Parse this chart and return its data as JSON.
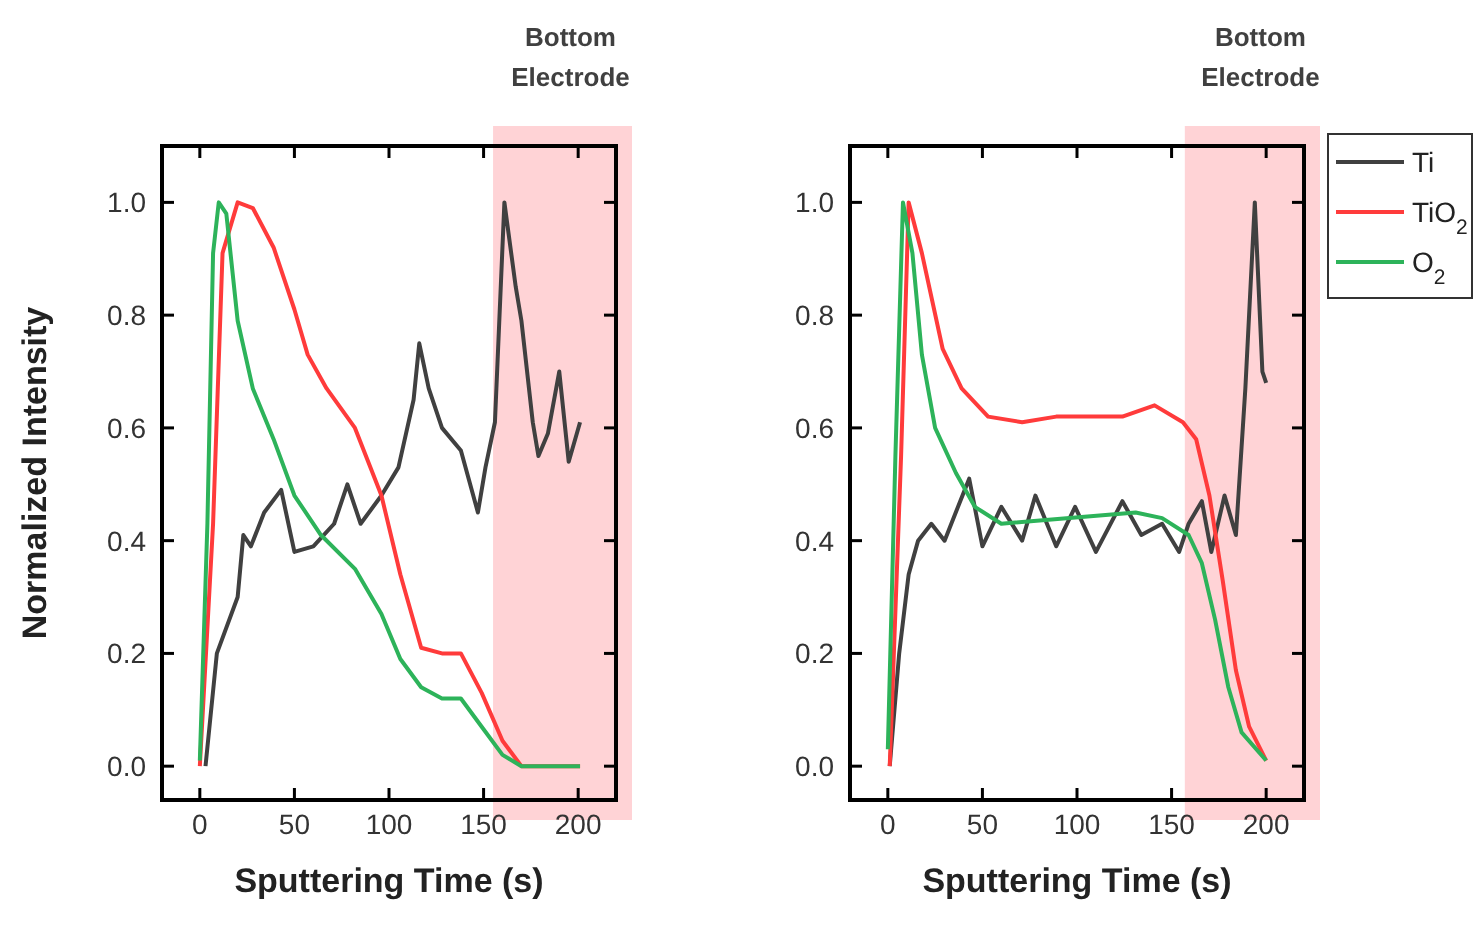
{
  "chart_data": [
    {
      "type": "line",
      "xlabel": "Sputtering Time (s)",
      "ylabel": "Normalized Intensity",
      "xlim": [
        -20,
        220
      ],
      "ylim": [
        -0.06,
        1.1
      ],
      "xticks": [
        0,
        50,
        100,
        150,
        200
      ],
      "yticks": [
        {
          "value": 0,
          "label": "0.0"
        },
        {
          "value": 0.2,
          "label": "0.2"
        },
        {
          "value": 0.4,
          "label": "0.4"
        },
        {
          "value": 0.6,
          "label": "0.6"
        },
        {
          "value": 0.8,
          "label": "0.8"
        },
        {
          "value": 1,
          "label": "1.0"
        }
      ],
      "grid": false,
      "legend": false,
      "bands": [
        {
          "axis": "x",
          "from": 155,
          "to": 220,
          "label": "Bottom Electrode",
          "color": "#ff9da3"
        }
      ],
      "series": [
        {
          "color": "#404040",
          "x": [
            3,
            9,
            20,
            23,
            27,
            34,
            43,
            50,
            60,
            71,
            78,
            85,
            96,
            105,
            113,
            116,
            121,
            128,
            138,
            147,
            151,
            156,
            161,
            167,
            170,
            176,
            179,
            184,
            190,
            195,
            201
          ],
          "values": [
            0,
            0.2,
            0.3,
            0.41,
            0.39,
            0.45,
            0.49,
            0.38,
            0.39,
            0.43,
            0.5,
            0.43,
            0.48,
            0.53,
            0.65,
            0.75,
            0.67,
            0.6,
            0.56,
            0.45,
            0.53,
            0.61,
            1.0,
            0.85,
            0.79,
            0.61,
            0.55,
            0.59,
            0.7,
            0.54,
            0.61
          ]
        },
        {
          "color": "#ff3b3b",
          "x": [
            0,
            7,
            12,
            20,
            28,
            39,
            50,
            57,
            67,
            82,
            96,
            106,
            117,
            128,
            138,
            149,
            160,
            170,
            201
          ],
          "values": [
            0,
            0.43,
            0.91,
            1.0,
            0.99,
            0.92,
            0.81,
            0.73,
            0.67,
            0.6,
            0.48,
            0.34,
            0.21,
            0.2,
            0.2,
            0.13,
            0.045,
            0,
            0
          ]
        },
        {
          "color": "#2db35a",
          "x": [
            0,
            4,
            7,
            10,
            14,
            20,
            28,
            39,
            50,
            64,
            82,
            96,
            106,
            117,
            128,
            138,
            149,
            160,
            170,
            201
          ],
          "values": [
            0.01,
            0.43,
            0.91,
            1.0,
            0.98,
            0.79,
            0.67,
            0.58,
            0.48,
            0.41,
            0.35,
            0.27,
            0.19,
            0.14,
            0.12,
            0.12,
            0.07,
            0.02,
            0,
            0
          ]
        }
      ]
    },
    {
      "type": "line",
      "xlabel": "Sputtering Time (s)",
      "xlim": [
        -20,
        220
      ],
      "ylim": [
        -0.06,
        1.1
      ],
      "xticks": [
        0,
        50,
        100,
        150,
        200
      ],
      "yticks": [
        {
          "value": 0,
          "label": "0.0"
        },
        {
          "value": 0.2,
          "label": "0.2"
        },
        {
          "value": 0.4,
          "label": "0.4"
        },
        {
          "value": 0.6,
          "label": "0.6"
        },
        {
          "value": 0.8,
          "label": "0.8"
        },
        {
          "value": 1,
          "label": "1.0"
        }
      ],
      "grid": false,
      "legend": "right",
      "bands": [
        {
          "axis": "x",
          "from": 157,
          "to": 220,
          "label": "Bottom Electrode",
          "color": "#ff9da3"
        }
      ],
      "series": [
        {
          "name": "Ti",
          "color": "#404040",
          "x": [
            1,
            6,
            11,
            16,
            23,
            30,
            43,
            50,
            60,
            71,
            78,
            89,
            99,
            110,
            124,
            134,
            145,
            154,
            159,
            166,
            171,
            178,
            184,
            189,
            194,
            198,
            200
          ],
          "values": [
            0,
            0.2,
            0.34,
            0.4,
            0.43,
            0.4,
            0.51,
            0.39,
            0.46,
            0.4,
            0.48,
            0.39,
            0.46,
            0.38,
            0.47,
            0.41,
            0.43,
            0.38,
            0.43,
            0.47,
            0.38,
            0.48,
            0.41,
            0.67,
            1.0,
            0.7,
            0.68
          ]
        },
        {
          "name": "TiO$_{2}$",
          "color": "#ff3b3b",
          "x": [
            1,
            7,
            11,
            18,
            29,
            39,
            53,
            71,
            89,
            106,
            124,
            141,
            156,
            163,
            170,
            177,
            184,
            191,
            200
          ],
          "values": [
            0,
            0.55,
            1.0,
            0.91,
            0.74,
            0.67,
            0.62,
            0.61,
            0.62,
            0.62,
            0.62,
            0.64,
            0.61,
            0.58,
            0.48,
            0.33,
            0.17,
            0.07,
            0.01
          ]
        },
        {
          "name": "O$_{2}$",
          "color": "#2db35a",
          "x": [
            0,
            4,
            8,
            13,
            18,
            25,
            36,
            46,
            60,
            96,
            131,
            145,
            159,
            166,
            173,
            180,
            187,
            200
          ],
          "values": [
            0.03,
            0.55,
            1.0,
            0.91,
            0.73,
            0.6,
            0.52,
            0.46,
            0.43,
            0.44,
            0.45,
            0.44,
            0.41,
            0.36,
            0.26,
            0.14,
            0.06,
            0.01
          ]
        }
      ]
    }
  ]
}
